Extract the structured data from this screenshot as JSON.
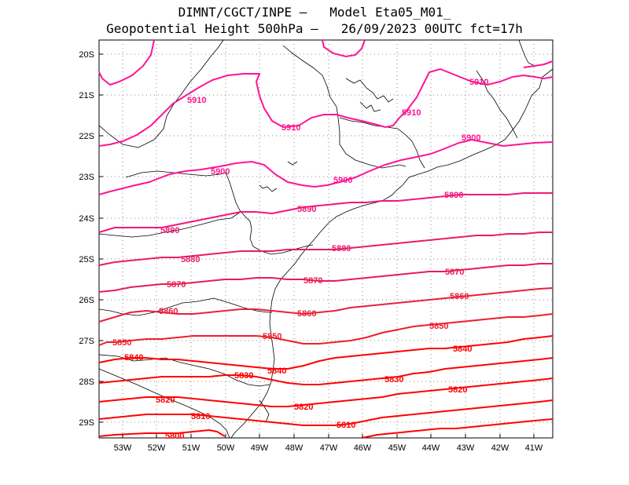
{
  "title": {
    "line1": "DIMNT/CGCT/INPE –   Model Eta05_M01_",
    "line2": "Geopotential Height 500hPa –   26/09/2023 00UTC fct=17h"
  },
  "map": {
    "lat_ticks": [
      "20S",
      "21S",
      "22S",
      "23S",
      "24S",
      "25S",
      "26S",
      "27S",
      "28S",
      "29S"
    ],
    "lon_ticks": [
      "53W",
      "52W",
      "51W",
      "50W",
      "49W",
      "48W",
      "47W",
      "46W",
      "45W",
      "44W",
      "43W",
      "42W",
      "41W"
    ],
    "contour_labels": [
      "5910",
      "5900",
      "5890",
      "5880",
      "5870",
      "5860",
      "5850",
      "5840",
      "5830",
      "5820",
      "5810",
      "5800"
    ],
    "colors": {
      "5910": "#ff1493",
      "5900": "#ff1493",
      "5890": "#f21878",
      "5880": "#e81c69",
      "5870": "#e81c55",
      "5860": "#e8203c",
      "5850": "#ee1e2a",
      "5840": "#ff0000",
      "5830": "#ff0000",
      "5820": "#ff0000",
      "5810": "#ff0000",
      "5800": "#ff0000"
    }
  }
}
